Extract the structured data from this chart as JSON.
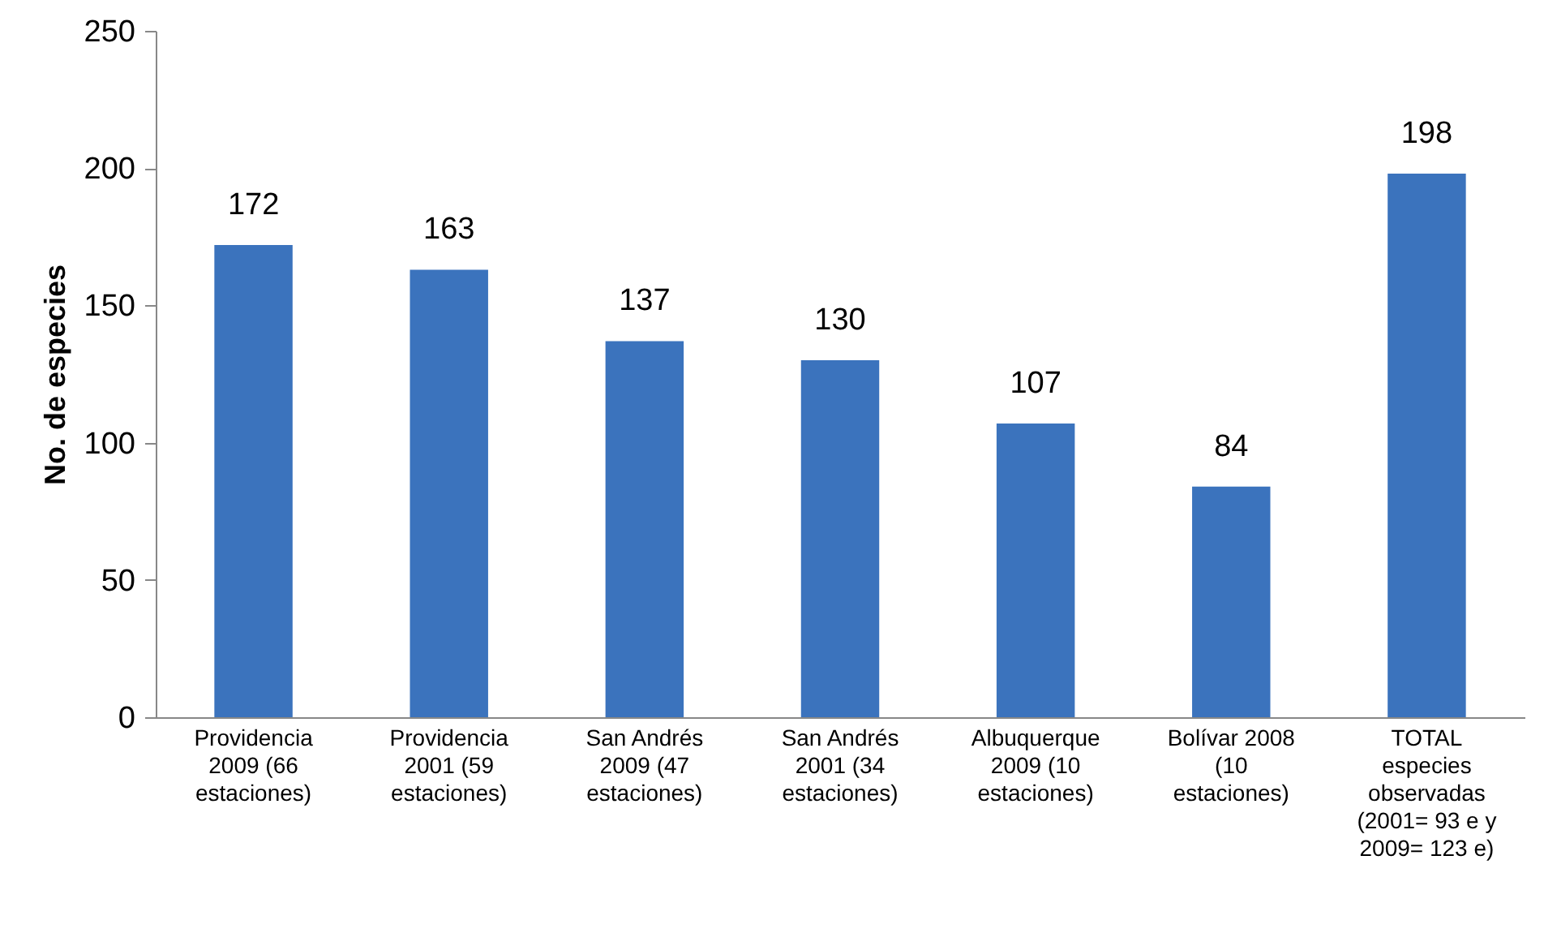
{
  "chart_data": {
    "type": "bar",
    "ylabel": "No. de especies",
    "categories": [
      "Providencia 2009 (66 estaciones)",
      "Providencia 2001 (59 estaciones)",
      "San Andrés 2009 (47 estaciones)",
      "San Andrés 2001 (34 estaciones)",
      "Albuquerque 2009 (10 estaciones)",
      "Bolívar 2008 (10 estaciones)",
      "TOTAL especies observadas (2001= 93 e y 2009= 123 e)"
    ],
    "values": [
      172,
      163,
      137,
      130,
      107,
      84,
      198
    ],
    "color": "#3b73bd",
    "ylim": [
      0,
      250
    ],
    "yticks": [
      0,
      50,
      100,
      150,
      200,
      250
    ],
    "data_labels": true
  }
}
